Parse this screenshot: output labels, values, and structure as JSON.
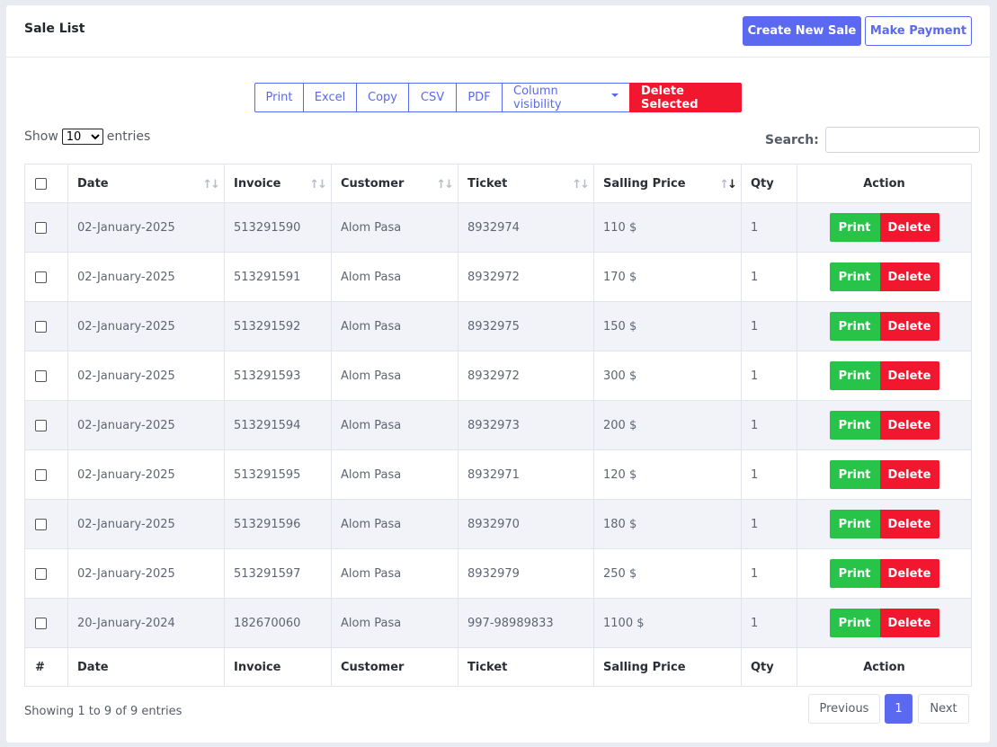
{
  "header": {
    "title": "Sale List",
    "create_label": "Create New Sale",
    "payment_label": "Make Payment"
  },
  "export_buttons": [
    "Print",
    "Excel",
    "Copy",
    "CSV",
    "PDF",
    "Column visibility",
    "Delete Selected"
  ],
  "length": {
    "show_label": "Show",
    "selected": "10",
    "entries_label": "entries"
  },
  "search": {
    "label": "Search:",
    "value": ""
  },
  "table": {
    "columns": [
      "Date",
      "Invoice",
      "Customer",
      "Ticket",
      "Salling Price",
      "Qty",
      "Action"
    ],
    "footer": [
      "#",
      "Date",
      "Invoice",
      "Customer",
      "Ticket",
      "Salling Price",
      "Qty",
      "Action"
    ],
    "print_label": "Print",
    "delete_label": "Delete",
    "rows": [
      {
        "date": "02-January-2025",
        "invoice": "513291590",
        "customer": "Alom Pasa",
        "ticket": "8932974",
        "price": "110 $",
        "qty": "1"
      },
      {
        "date": "02-January-2025",
        "invoice": "513291591",
        "customer": "Alom Pasa",
        "ticket": "8932972",
        "price": "170 $",
        "qty": "1"
      },
      {
        "date": "02-January-2025",
        "invoice": "513291592",
        "customer": "Alom Pasa",
        "ticket": "8932975",
        "price": "150 $",
        "qty": "1"
      },
      {
        "date": "02-January-2025",
        "invoice": "513291593",
        "customer": "Alom Pasa",
        "ticket": "8932972",
        "price": "300 $",
        "qty": "1"
      },
      {
        "date": "02-January-2025",
        "invoice": "513291594",
        "customer": "Alom Pasa",
        "ticket": "8932973",
        "price": "200 $",
        "qty": "1"
      },
      {
        "date": "02-January-2025",
        "invoice": "513291595",
        "customer": "Alom Pasa",
        "ticket": "8932971",
        "price": "120 $",
        "qty": "1"
      },
      {
        "date": "02-January-2025",
        "invoice": "513291596",
        "customer": "Alom Pasa",
        "ticket": "8932970",
        "price": "180 $",
        "qty": "1"
      },
      {
        "date": "02-January-2025",
        "invoice": "513291597",
        "customer": "Alom Pasa",
        "ticket": "8932979",
        "price": "250 $",
        "qty": "1"
      },
      {
        "date": "20-January-2024",
        "invoice": "182670060",
        "customer": "Alom Pasa",
        "ticket": "997-98989833",
        "price": "1100 $",
        "qty": "1"
      }
    ]
  },
  "info": "Showing 1 to 9 of 9 entries",
  "pagination": {
    "prev": "Previous",
    "current": "1",
    "next": "Next"
  },
  "colors": {
    "primary": "#5b69f0",
    "danger": "#f0172f",
    "success": "#28c44a"
  }
}
